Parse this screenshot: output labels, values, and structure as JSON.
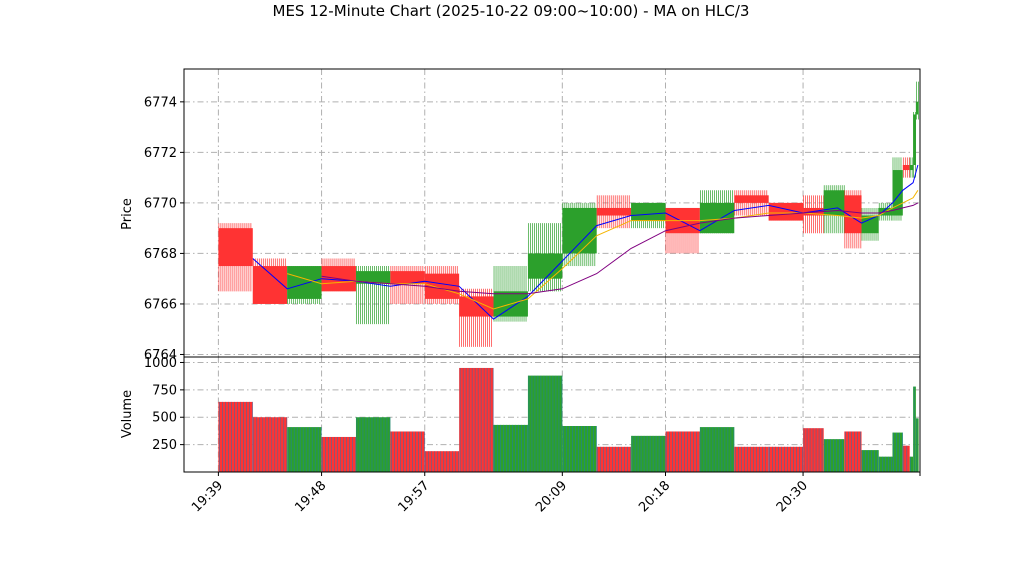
{
  "colors": {
    "up": "#2ca02c",
    "down": "#ff3333",
    "ma_fast": "#0000ff",
    "ma_mid": "#f5b500",
    "ma_slow": "#800080",
    "grid": "#b0b0b0",
    "vol_edge": "#1f77b4"
  },
  "chart_data": {
    "type": "candlestick",
    "title": "MES 12-Minute Chart (2025-10-22 09:00~10:00) - MA on HLC/3",
    "price_panel": {
      "ylabel": "Price",
      "ylim": [
        6763.9,
        6775.3
      ],
      "yticks": [
        6764,
        6766,
        6768,
        6770,
        6772,
        6774
      ],
      "grid": true
    },
    "volume_panel": {
      "ylabel": "Volume",
      "ylim": [
        0,
        1050
      ],
      "yticks": [
        250,
        500,
        750,
        1000
      ],
      "grid": true
    },
    "x_ticks": [
      {
        "x": 19.65,
        "label": "19:39"
      },
      {
        "x": 19.8,
        "label": "19:48"
      },
      {
        "x": 19.95,
        "label": "19:57"
      },
      {
        "x": 20.15,
        "label": "20:09"
      },
      {
        "x": 20.3,
        "label": "20:18"
      },
      {
        "x": 20.5,
        "label": "20:30"
      },
      {
        "x": 20.67,
        "label": ""
      }
    ],
    "x_range": [
      19.6,
      20.67
    ],
    "bars": [
      {
        "x0": 19.65,
        "x1": 19.7,
        "open": 6769.0,
        "close": 6767.5,
        "high": 6769.2,
        "low": 6766.5,
        "volume": 640
      },
      {
        "x0": 19.7,
        "x1": 19.75,
        "open": 6767.5,
        "close": 6766.0,
        "high": 6767.8,
        "low": 6766.0,
        "volume": 500
      },
      {
        "x0": 19.75,
        "x1": 19.8,
        "open": 6766.2,
        "close": 6767.5,
        "high": 6767.5,
        "low": 6766.0,
        "volume": 410
      },
      {
        "x0": 19.8,
        "x1": 19.85,
        "open": 6767.5,
        "close": 6766.5,
        "high": 6767.8,
        "low": 6766.5,
        "volume": 320
      },
      {
        "x0": 19.85,
        "x1": 19.9,
        "open": 6766.8,
        "close": 6767.3,
        "high": 6767.5,
        "low": 6765.2,
        "volume": 500
      },
      {
        "x0": 19.9,
        "x1": 19.95,
        "open": 6767.3,
        "close": 6766.8,
        "high": 6767.5,
        "low": 6766.0,
        "volume": 370
      },
      {
        "x0": 19.95,
        "x1": 20.0,
        "open": 6767.2,
        "close": 6766.2,
        "high": 6767.5,
        "low": 6766.0,
        "volume": 190
      },
      {
        "x0": 20.0,
        "x1": 20.05,
        "open": 6766.3,
        "close": 6765.5,
        "high": 6766.6,
        "low": 6764.3,
        "volume": 950
      },
      {
        "x0": 20.05,
        "x1": 20.1,
        "open": 6765.5,
        "close": 6766.5,
        "high": 6767.5,
        "low": 6765.3,
        "volume": 430
      },
      {
        "x0": 20.1,
        "x1": 20.15,
        "open": 6767.0,
        "close": 6768.0,
        "high": 6769.2,
        "low": 6766.5,
        "volume": 880
      },
      {
        "x0": 20.15,
        "x1": 20.2,
        "open": 6768.0,
        "close": 6769.8,
        "high": 6770.0,
        "low": 6767.5,
        "volume": 420
      },
      {
        "x0": 20.2,
        "x1": 20.25,
        "open": 6769.8,
        "close": 6769.5,
        "high": 6770.3,
        "low": 6769.0,
        "volume": 230
      },
      {
        "x0": 20.25,
        "x1": 20.3,
        "open": 6769.3,
        "close": 6770.0,
        "high": 6770.0,
        "low": 6769.0,
        "volume": 330
      },
      {
        "x0": 20.3,
        "x1": 20.35,
        "open": 6769.8,
        "close": 6768.8,
        "high": 6769.8,
        "low": 6768.0,
        "volume": 370
      },
      {
        "x0": 20.35,
        "x1": 20.4,
        "open": 6768.8,
        "close": 6770.0,
        "high": 6770.5,
        "low": 6768.8,
        "volume": 410
      },
      {
        "x0": 20.4,
        "x1": 20.45,
        "open": 6770.3,
        "close": 6770.0,
        "high": 6770.5,
        "low": 6769.5,
        "volume": 230
      },
      {
        "x0": 20.45,
        "x1": 20.5,
        "open": 6770.0,
        "close": 6769.3,
        "high": 6770.0,
        "low": 6769.3,
        "volume": 230
      },
      {
        "x0": 20.5,
        "x1": 20.53,
        "open": 6769.8,
        "close": 6769.5,
        "high": 6770.3,
        "low": 6768.8,
        "volume": 400
      },
      {
        "x0": 20.53,
        "x1": 20.56,
        "open": 6769.5,
        "close": 6770.5,
        "high": 6770.7,
        "low": 6768.8,
        "volume": 300
      },
      {
        "x0": 20.56,
        "x1": 20.585,
        "open": 6770.3,
        "close": 6768.8,
        "high": 6770.5,
        "low": 6768.2,
        "volume": 370
      },
      {
        "x0": 20.585,
        "x1": 20.61,
        "open": 6768.8,
        "close": 6769.5,
        "high": 6769.8,
        "low": 6768.5,
        "volume": 200
      },
      {
        "x0": 20.61,
        "x1": 20.63,
        "open": 6769.5,
        "close": 6769.8,
        "high": 6770.0,
        "low": 6769.3,
        "volume": 140
      },
      {
        "x0": 20.63,
        "x1": 20.645,
        "open": 6769.5,
        "close": 6771.3,
        "high": 6771.8,
        "low": 6769.3,
        "volume": 360
      },
      {
        "x0": 20.645,
        "x1": 20.655,
        "open": 6771.5,
        "close": 6771.3,
        "high": 6771.8,
        "low": 6771.0,
        "volume": 240
      },
      {
        "x0": 20.655,
        "x1": 20.66,
        "open": 6771.3,
        "close": 6771.5,
        "high": 6771.8,
        "low": 6771.0,
        "volume": 140
      },
      {
        "x0": 20.66,
        "x1": 20.664,
        "open": 6771.5,
        "close": 6773.5,
        "high": 6773.6,
        "low": 6771.0,
        "volume": 780
      },
      {
        "x0": 20.664,
        "x1": 20.668,
        "open": 6773.5,
        "close": 6774.0,
        "high": 6774.8,
        "low": 6773.3,
        "volume": 490
      }
    ],
    "series": [
      {
        "color_key": "ma_fast",
        "x": [
          19.7,
          19.75,
          19.8,
          19.85,
          19.9,
          19.95,
          20.0,
          20.05,
          20.1,
          20.15,
          20.2,
          20.25,
          20.3,
          20.35,
          20.4,
          20.45,
          20.5,
          20.55,
          20.585,
          20.61,
          20.63,
          20.645,
          20.66,
          20.667
        ],
        "values": [
          6767.8,
          6766.6,
          6767.0,
          6766.9,
          6766.7,
          6766.9,
          6766.7,
          6765.4,
          6766.3,
          6767.7,
          6769.1,
          6769.5,
          6769.6,
          6768.9,
          6769.7,
          6769.9,
          6769.6,
          6769.8,
          6769.2,
          6769.5,
          6770.0,
          6770.5,
          6770.8,
          6771.5
        ]
      },
      {
        "color_key": "ma_mid",
        "x": [
          19.75,
          19.8,
          19.85,
          19.9,
          19.95,
          20.0,
          20.05,
          20.1,
          20.15,
          20.2,
          20.25,
          20.3,
          20.35,
          20.4,
          20.45,
          20.5,
          20.55,
          20.585,
          20.61,
          20.63,
          20.645,
          20.66,
          20.667
        ],
        "values": [
          6767.2,
          6766.8,
          6766.9,
          6766.8,
          6766.8,
          6766.4,
          6765.8,
          6766.2,
          6767.4,
          6768.7,
          6769.3,
          6769.3,
          6769.3,
          6769.4,
          6769.6,
          6769.6,
          6769.5,
          6769.4,
          6769.5,
          6769.8,
          6770.0,
          6770.2,
          6770.5
        ]
      },
      {
        "color_key": "ma_slow",
        "x": [
          19.8,
          19.85,
          19.9,
          19.95,
          20.0,
          20.05,
          20.1,
          20.15,
          20.2,
          20.25,
          20.3,
          20.35,
          20.4,
          20.45,
          20.5,
          20.55,
          20.585,
          20.61,
          20.63,
          20.645,
          20.66,
          20.667
        ],
        "values": [
          6767.1,
          6766.9,
          6766.8,
          6766.7,
          6766.5,
          6766.4,
          6766.4,
          6766.6,
          6767.2,
          6768.2,
          6768.9,
          6769.2,
          6769.4,
          6769.5,
          6769.6,
          6769.7,
          6769.6,
          6769.6,
          6769.7,
          6769.8,
          6769.9,
          6770.0
        ]
      }
    ]
  }
}
